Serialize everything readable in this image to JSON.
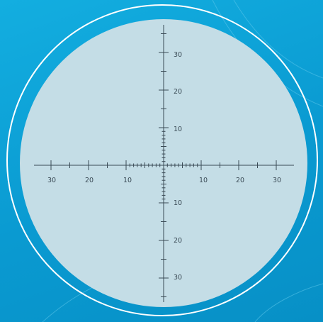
{
  "reticle": {
    "horizontal_labels": {
      "left": [
        "30",
        "20",
        "10"
      ],
      "right": [
        "10",
        "20",
        "30"
      ]
    },
    "vertical_labels": {
      "top": [
        "30",
        "20",
        "10"
      ],
      "bottom": [
        "10",
        "20",
        "30"
      ]
    }
  },
  "colors": {
    "background": "#0b9fd4",
    "lens_fill": "#c4dde6",
    "ring": "#ffffff",
    "scale": "#3a4a55"
  }
}
